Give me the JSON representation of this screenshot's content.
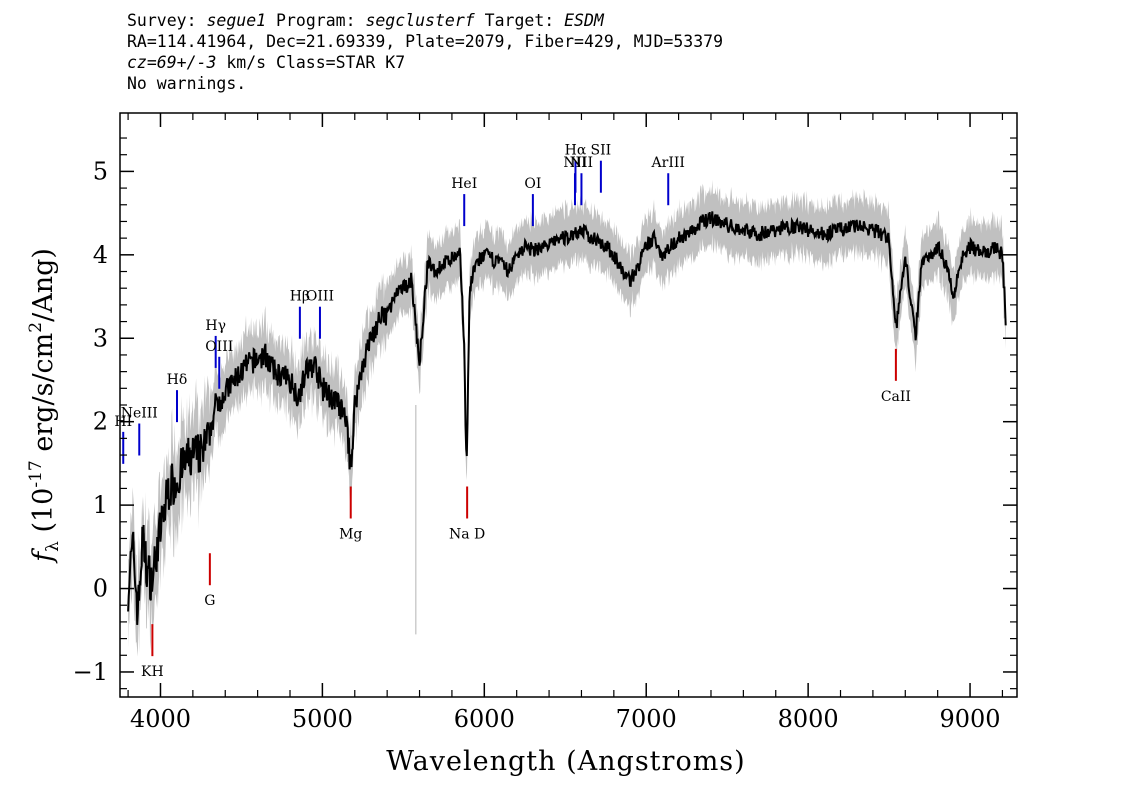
{
  "header": {
    "survey_label": "Survey: ",
    "survey": "segue1",
    "program_label": " Program: ",
    "program": "segclusterf",
    "target_label": " Target: ",
    "target": "ESDM",
    "line2": "RA=114.41964, Dec=21.69339, Plate=2079, Fiber=429, MJD=53379",
    "cz": "cz=69+/-3",
    "line3_rest": " km/s Class=STAR K7",
    "line4": "No warnings."
  },
  "chart_data": {
    "type": "line",
    "xlabel": "Wavelength (Angstroms)",
    "ylabel": "f_λ (10^-17 erg/s/cm^2/Ang)",
    "xlim": [
      3750,
      9290
    ],
    "ylim": [
      -1.3,
      5.7
    ],
    "xticks": [
      4000,
      5000,
      6000,
      7000,
      8000,
      9000
    ],
    "yticks": [
      -1,
      0,
      1,
      2,
      3,
      4,
      5
    ],
    "grid": false,
    "colors": {
      "flux": "#000000",
      "error_band": "#c0c0c0",
      "emission": "#0000cc",
      "absorption": "#cc0000"
    },
    "series": [
      {
        "x": [
          3800,
          3830,
          3860,
          3890,
          3920,
          3950,
          3980,
          4010,
          4050,
          4100,
          4150,
          4200,
          4250,
          4300,
          4340,
          4380,
          4420,
          4460,
          4500,
          4550,
          4600,
          4650,
          4700,
          4750,
          4800,
          4850,
          4900,
          4950,
          5000,
          5050,
          5100,
          5150,
          5175,
          5200,
          5250,
          5300,
          5350,
          5400,
          5450,
          5500,
          5550,
          5600,
          5650,
          5700,
          5750,
          5800,
          5850,
          5875,
          5890,
          5910,
          5950,
          6000,
          6050,
          6100,
          6150,
          6200,
          6250,
          6300,
          6350,
          6400,
          6450,
          6500,
          6550,
          6600,
          6650,
          6700,
          6750,
          6800,
          6850,
          6900,
          6950,
          7000,
          7050,
          7100,
          7150,
          7200,
          7250,
          7300,
          7350,
          7400,
          7450,
          7500,
          7600,
          7700,
          7800,
          7900,
          8000,
          8100,
          8200,
          8300,
          8400,
          8500,
          8542,
          8600,
          8662,
          8700,
          8750,
          8800,
          8850,
          8900,
          8950,
          9000,
          9050,
          9100,
          9150,
          9200,
          9220
        ],
        "y": [
          0.0,
          0.5,
          -0.3,
          0.6,
          0.2,
          0.1,
          0.5,
          0.8,
          1.2,
          1.3,
          1.5,
          1.6,
          1.6,
          1.8,
          2.2,
          2.3,
          2.4,
          2.5,
          2.6,
          2.7,
          2.75,
          2.8,
          2.6,
          2.55,
          2.5,
          2.3,
          2.6,
          2.7,
          2.4,
          2.3,
          2.2,
          2.0,
          1.4,
          2.2,
          2.7,
          3.0,
          3.2,
          3.3,
          3.5,
          3.6,
          3.7,
          2.7,
          3.9,
          3.8,
          3.9,
          3.95,
          4.0,
          3.0,
          1.4,
          3.6,
          3.9,
          4.0,
          3.95,
          3.9,
          3.8,
          4.0,
          4.1,
          4.05,
          4.1,
          4.1,
          4.2,
          4.2,
          4.25,
          4.3,
          4.2,
          4.2,
          4.1,
          4.0,
          3.8,
          3.7,
          3.85,
          4.1,
          4.2,
          4.0,
          4.1,
          4.2,
          4.25,
          4.3,
          4.4,
          4.45,
          4.4,
          4.35,
          4.3,
          4.25,
          4.3,
          4.35,
          4.3,
          4.25,
          4.3,
          4.35,
          4.3,
          4.2,
          3.1,
          4.0,
          3.0,
          3.9,
          4.0,
          4.1,
          3.9,
          3.5,
          4.0,
          4.1,
          4.05,
          4.0,
          4.1,
          4.0,
          3.2
        ]
      }
    ],
    "spectral_lines": [
      {
        "label": "HI",
        "x": 3770,
        "type": "emission",
        "label_y": 1.95
      },
      {
        "label": "NeIII",
        "x": 3869,
        "type": "emission",
        "label_y": 2.05
      },
      {
        "label": "Hδ",
        "x": 4102,
        "type": "emission",
        "label_y": 2.45
      },
      {
        "label": "Hγ",
        "x": 4341,
        "type": "emission",
        "label_y": 3.1
      },
      {
        "label": "OIII",
        "x": 4363,
        "type": "emission",
        "label_y": 2.85
      },
      {
        "label": "Hβ",
        "x": 4861,
        "type": "emission",
        "label_y": 3.45
      },
      {
        "label": "OIII",
        "x": 4985,
        "type": "emission",
        "label_y": 3.45
      },
      {
        "label": "HeI",
        "x": 5876,
        "type": "emission",
        "label_y": 4.8
      },
      {
        "label": "OI",
        "x": 6300,
        "type": "emission",
        "label_y": 4.8
      },
      {
        "label": "NII",
        "x": 6560,
        "type": "emission",
        "label_y": 5.05
      },
      {
        "label": "Hα",
        "x": 6563,
        "type": "emission",
        "label_y": 5.2
      },
      {
        "label": "SII",
        "x": 6720,
        "type": "emission",
        "label_y": 5.2
      },
      {
        "label": "NII",
        "x": 6600,
        "type": "emission",
        "label_y": 5.05
      },
      {
        "label": "ArIII",
        "x": 7136,
        "type": "emission",
        "label_y": 5.05
      },
      {
        "label": "KH",
        "x": 3950,
        "type": "absorption",
        "label_y": -1.05
      },
      {
        "label": "G",
        "x": 4305,
        "type": "absorption",
        "label_y": -0.2
      },
      {
        "label": "Mg",
        "x": 5175,
        "type": "absorption",
        "label_y": 0.6
      },
      {
        "label": "Na D",
        "x": 5894,
        "type": "absorption",
        "label_y": 0.6
      },
      {
        "label": "CaII",
        "x": 8542,
        "type": "absorption",
        "label_y": 2.25
      }
    ]
  }
}
